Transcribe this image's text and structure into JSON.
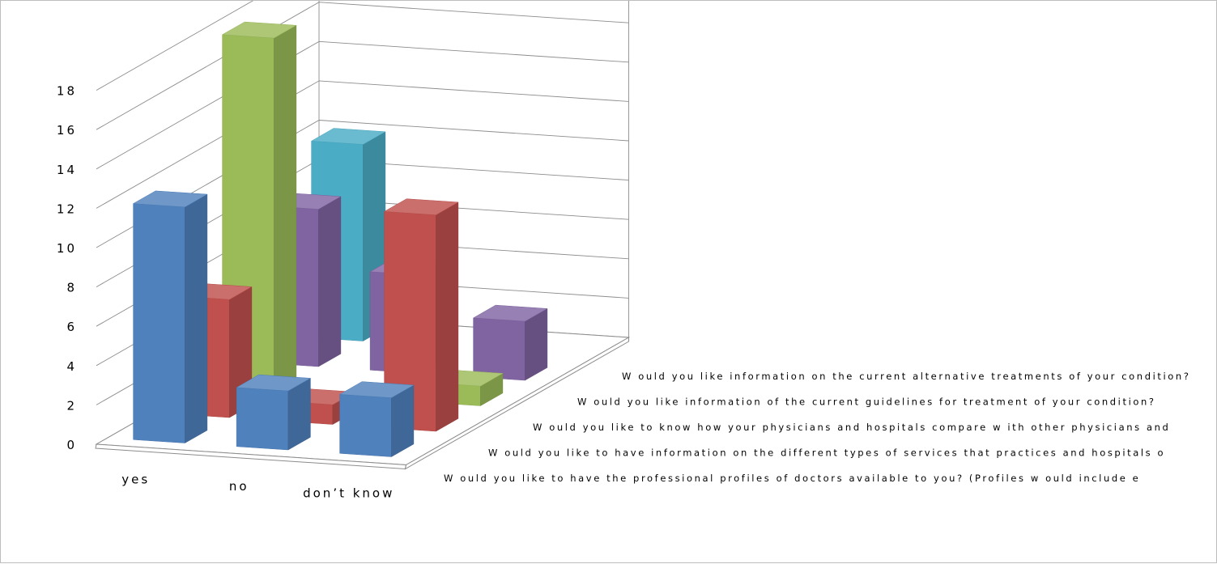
{
  "chart_data": {
    "type": "bar",
    "subtype": "3d-column",
    "categories": [
      "yes",
      "no",
      "don't know"
    ],
    "category_labels_display": [
      "yes",
      "no",
      "don’t know"
    ],
    "ylim": [
      0,
      18
    ],
    "yticks": [
      0,
      2,
      4,
      6,
      8,
      10,
      12,
      14,
      16,
      18
    ],
    "grid": true,
    "series": [
      {
        "name": "Would you like to have the professional profiles of doctors available to you? (Profiles would include e",
        "color": "#4f81bd",
        "values": [
          12,
          3,
          3
        ]
      },
      {
        "name": "Would you like to have information on the different types of services that practices and hospitals o",
        "color": "#c0504d",
        "values": [
          6,
          1,
          11
        ]
      },
      {
        "name": "Would you like to know  how  your physicians and hospitals compare w ith other physicians and",
        "color": "#9bbb59",
        "values": [
          18,
          0,
          1
        ]
      },
      {
        "name": "Would you like information of the current guidelines for treatment of your condition?",
        "color": "#8064a2",
        "values": [
          8,
          5,
          3
        ]
      },
      {
        "name": "Would you like information on the current alternative treatments of your condition?",
        "color": "#4bacc6",
        "values": [
          10,
          0,
          0
        ]
      }
    ],
    "series_labels_display": [
      "W ould you like to have the professional profiles of doctors available to you? (Profiles w ould include e",
      "W ould you like to have information on the different types of services that practices and hospitals o",
      "W ould you like to know  how  your physicians and hospitals compare w ith other physicians and",
      "W ould you like information of the current guidelines for treatment of your condition?",
      "W ould you like information on the current alternative treatments of your condition?"
    ]
  }
}
